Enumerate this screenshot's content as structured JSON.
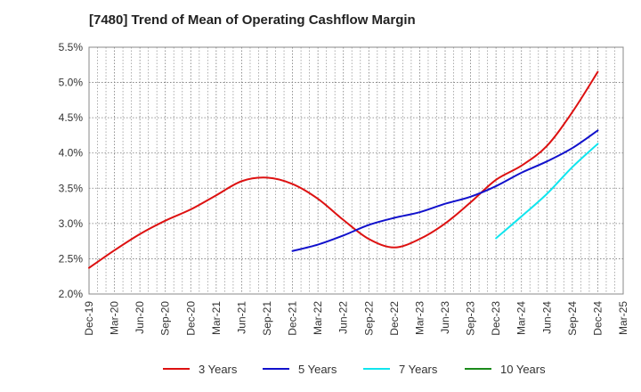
{
  "chart_data": {
    "type": "line",
    "title": "[7480]  Trend of Mean of Operating Cashflow Margin",
    "xlabel": "",
    "ylabel": "",
    "ylim": [
      2.0,
      5.5
    ],
    "yticks": [
      "2.0%",
      "2.5%",
      "3.0%",
      "3.5%",
      "4.0%",
      "4.5%",
      "5.0%",
      "5.5%"
    ],
    "ytick_values": [
      2.0,
      2.5,
      3.0,
      3.5,
      4.0,
      4.5,
      5.0,
      5.5
    ],
    "categories": [
      "Dec-19",
      "Mar-20",
      "Jun-20",
      "Sep-20",
      "Dec-20",
      "Mar-21",
      "Jun-21",
      "Sep-21",
      "Dec-21",
      "Mar-22",
      "Jun-22",
      "Sep-22",
      "Dec-22",
      "Mar-23",
      "Jun-23",
      "Sep-23",
      "Dec-23",
      "Mar-24",
      "Jun-24",
      "Sep-24",
      "Dec-24",
      "Mar-25"
    ],
    "grid": true,
    "legend_position": "bottom",
    "series": [
      {
        "name": "3 Years",
        "color": "#dd1111",
        "values": [
          2.37,
          2.62,
          2.85,
          3.04,
          3.2,
          3.4,
          3.6,
          3.65,
          3.56,
          3.35,
          3.05,
          2.78,
          2.66,
          2.78,
          3.0,
          3.3,
          3.62,
          3.82,
          4.1,
          4.58,
          5.15,
          null
        ]
      },
      {
        "name": "5 Years",
        "color": "#1111cc",
        "values": [
          null,
          null,
          null,
          null,
          null,
          null,
          null,
          null,
          2.61,
          2.7,
          2.83,
          2.98,
          3.08,
          3.16,
          3.28,
          3.38,
          3.53,
          3.72,
          3.88,
          4.07,
          4.32,
          null
        ]
      },
      {
        "name": "7 Years",
        "color": "#11e5ee",
        "values": [
          null,
          null,
          null,
          null,
          null,
          null,
          null,
          null,
          null,
          null,
          null,
          null,
          null,
          null,
          null,
          null,
          2.79,
          3.1,
          3.42,
          3.8,
          4.13,
          null
        ]
      },
      {
        "name": "10 Years",
        "color": "#1a8a1a",
        "values": [
          null,
          null,
          null,
          null,
          null,
          null,
          null,
          null,
          null,
          null,
          null,
          null,
          null,
          null,
          null,
          null,
          null,
          null,
          null,
          null,
          null,
          null
        ]
      }
    ]
  }
}
